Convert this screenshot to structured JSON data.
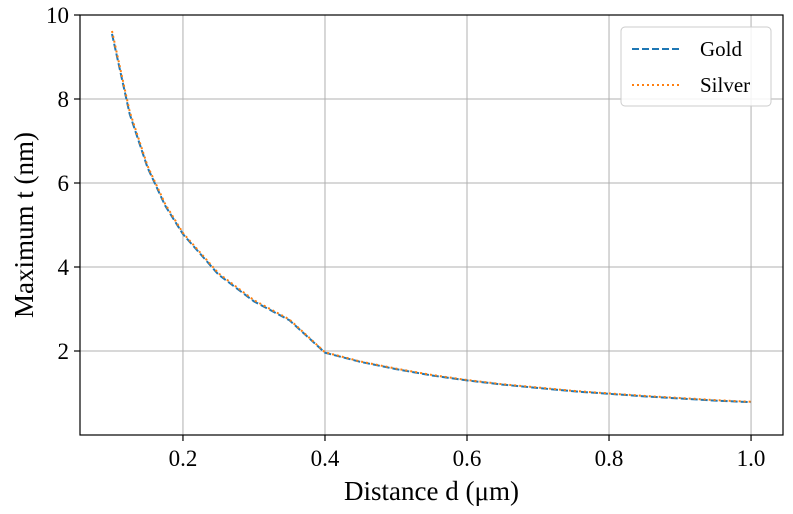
{
  "chart_data": {
    "type": "line",
    "xlabel": "Distance d (μm)",
    "ylabel": "Maximum t (nm)",
    "xlim": [
      0.055,
      1.045
    ],
    "ylim": [
      0,
      10
    ],
    "xticks": [
      0.2,
      0.4,
      0.6,
      0.8,
      1.0
    ],
    "xtick_labels": [
      "0.2",
      "0.4",
      "0.6",
      "0.8",
      "1.0"
    ],
    "yticks": [
      2,
      4,
      6,
      8,
      10
    ],
    "ytick_labels": [
      "2",
      "4",
      "6",
      "8",
      "10"
    ],
    "grid": true,
    "legend_position": "top-right",
    "x": [
      0.1,
      0.125,
      0.15,
      0.175,
      0.2,
      0.25,
      0.3,
      0.35,
      0.4,
      0.45,
      0.5,
      0.55,
      0.6,
      0.65,
      0.7,
      0.75,
      0.8,
      0.85,
      0.9,
      0.95,
      1.0
    ],
    "series": [
      {
        "name": "Gold",
        "color": "#1f77b4",
        "linestyle": "dashed",
        "values": [
          9.55,
          7.64,
          6.37,
          5.46,
          4.78,
          3.82,
          3.18,
          2.73,
          1.96,
          1.74,
          1.57,
          1.42,
          1.3,
          1.2,
          1.12,
          1.04,
          0.98,
          0.92,
          0.87,
          0.82,
          0.78
        ]
      },
      {
        "name": "Silver",
        "color": "#ff7f0e",
        "linestyle": "dotted",
        "values": [
          9.62,
          7.7,
          6.41,
          5.5,
          4.81,
          3.85,
          3.21,
          2.75,
          1.97,
          1.75,
          1.58,
          1.43,
          1.31,
          1.21,
          1.13,
          1.05,
          0.99,
          0.93,
          0.88,
          0.83,
          0.79
        ]
      }
    ]
  }
}
